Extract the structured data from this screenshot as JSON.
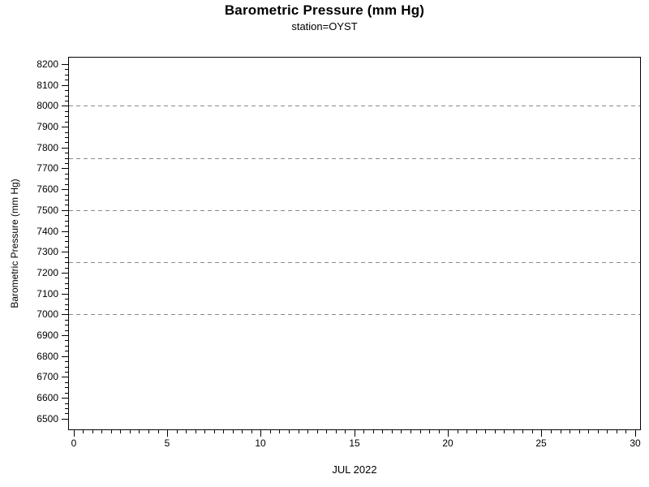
{
  "chart_data": {
    "type": "line",
    "title": "Barometric Pressure (mm Hg)",
    "subtitle": "station=OYST",
    "xlabel": "JUL 2022",
    "ylabel": "Barometric Pressure (mm Hg)",
    "xlim": [
      -0.29,
      30.31
    ],
    "ylim": [
      6445,
      8235
    ],
    "x_major_ticks": [
      0,
      5,
      10,
      15,
      20,
      25,
      30
    ],
    "x_minor_step": 0.5,
    "x_minor_range": [
      0,
      30
    ],
    "y_major_ticks": [
      6500,
      6600,
      6700,
      6800,
      6900,
      7000,
      7100,
      7200,
      7300,
      7400,
      7500,
      7600,
      7700,
      7800,
      7900,
      8000,
      8100,
      8200
    ],
    "y_minor_step": 25,
    "y_minor_range": [
      6500,
      8200
    ],
    "gridlines_y": [
      7000,
      7250,
      7500,
      7750,
      8000
    ],
    "grid_style": "dashed",
    "grid_on": true,
    "legend": "none",
    "series": [],
    "colors": {
      "axis": "#000000",
      "grid": "#8a8a8a",
      "text": "#000000",
      "background": "#ffffff"
    }
  }
}
